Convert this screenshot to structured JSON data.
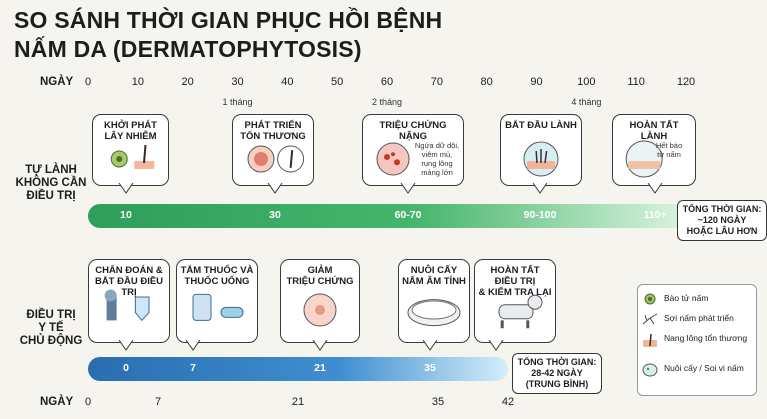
{
  "title_line1": "SO SÁNH THỜI GIAN PHỤC HỒI BỆNH",
  "title_line2": "NẤM DA (DERMATOPHYTOSIS)",
  "axis_label": "NGÀY",
  "top_ticks": [
    "0",
    "10",
    "20",
    "30",
    "40",
    "50",
    "60",
    "70",
    "80",
    "90",
    "100",
    "110",
    "120"
  ],
  "months": [
    "1 tháng",
    "2 tháng",
    "4 tháng"
  ],
  "bottom_ticks": [
    "0",
    "7",
    "21",
    "35",
    "42"
  ],
  "untreated": {
    "label": [
      "TỰ LÀNH",
      "KHÔNG CẦN",
      "ĐIỀU TRỊ"
    ],
    "stages": [
      {
        "title": [
          "KHỞI PHÁT",
          "LÂY NHIỄM"
        ],
        "value": "10"
      },
      {
        "title": [
          "PHÁT TRIỂN",
          "TỔN THƯƠNG"
        ],
        "value": "30"
      },
      {
        "title": [
          "TRIỆU CHỨNG NẶNG"
        ],
        "value": "60-70",
        "note": [
          "Ngứa dữ dội,",
          "viêm mủ,",
          "rụng lông",
          "mảng lớn"
        ]
      },
      {
        "title": [
          "BẮT ĐẦU LÀNH"
        ],
        "value": "90-100"
      },
      {
        "title": [
          "HOÀN TẤT LÀNH"
        ],
        "value": "110+",
        "note": [
          "Hết bào",
          "tử nấm"
        ]
      }
    ],
    "total": [
      "TỔNG THỜI GIAN:",
      "~120 NGÀY",
      "HOẶC LÂU HƠN"
    ]
  },
  "treated": {
    "label": [
      "ĐIỀU TRỊ",
      "Y TẾ",
      "CHỦ ĐỘNG"
    ],
    "stages": [
      {
        "title": [
          "CHẨN ĐOÁN &",
          "BẮT ĐẦU ĐIỀU TRỊ"
        ],
        "value": "0"
      },
      {
        "title": [
          "TẮM THUỐC VÀ",
          "THUỐC UỐNG"
        ],
        "value": "7"
      },
      {
        "title": [
          "GIẢM",
          "TRIỆU CHỨNG"
        ],
        "value": "21"
      },
      {
        "title": [
          "NUÔI CẤY",
          "NẤM ÂM TÍNH"
        ],
        "value": "35"
      },
      {
        "title": [
          "HOÀN TẤT ĐIỀU TRỊ",
          "& KIỂM TRA LẠI"
        ],
        "value": ""
      }
    ],
    "total": [
      "TỔNG THỜI GIAN:",
      "28-42 NGÀY",
      "(TRUNG BÌNH)"
    ]
  },
  "legend": [
    {
      "icon": "spore-icon",
      "label": "Bào tử nấm"
    },
    {
      "icon": "hyphae-icon",
      "label": "Sợi nấm phát triển"
    },
    {
      "icon": "hair-follicle-icon",
      "label": "Nang lông tổn thương"
    },
    {
      "icon": "petri-dish-icon",
      "label": "Nuôi cấy / Soi vi nấm"
    }
  ],
  "colors": {
    "green_start": "#2e9e5b",
    "green_end": "#d9f3df",
    "blue_start": "#2a6db0",
    "blue_end": "#d5eefa"
  }
}
